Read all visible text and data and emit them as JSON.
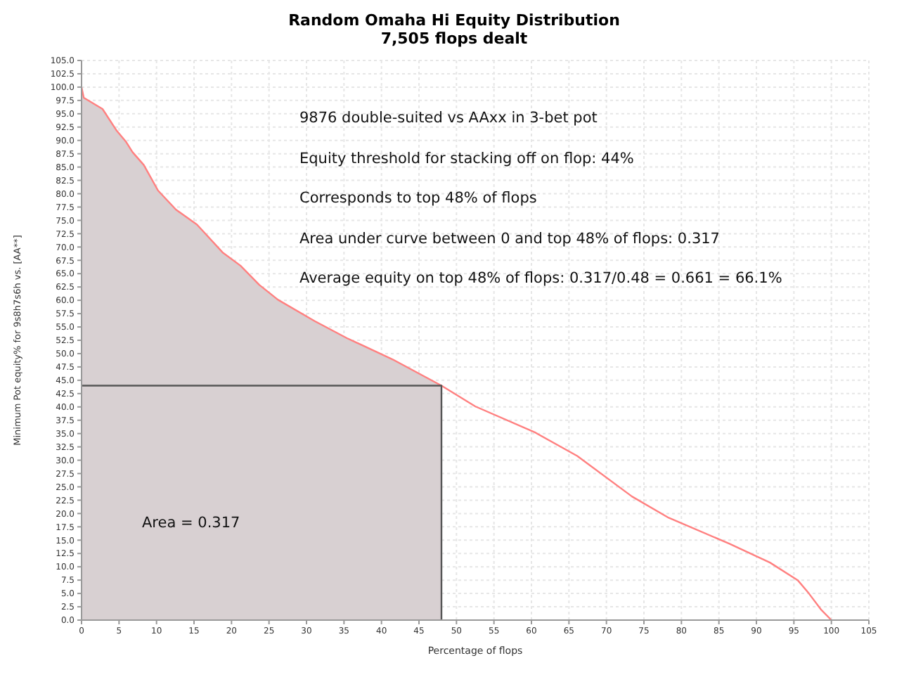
{
  "chart_data": {
    "type": "line",
    "title": "Random Omaha Hi Equity Distribution",
    "subtitle": "7,505 flops dealt",
    "xlabel": "Percentage of flops",
    "ylabel": "Minimum Pot equity% for 9s8h7s6h vs. [AA**]",
    "xlim": [
      0,
      105
    ],
    "xticks": [
      0,
      5,
      10,
      15,
      20,
      25,
      30,
      35,
      40,
      45,
      50,
      55,
      60,
      65,
      70,
      75,
      80,
      85,
      90,
      95,
      100,
      105
    ],
    "ylim": [
      0,
      105
    ],
    "yticks": [
      {
        "value": 0,
        "label": "0.0"
      },
      {
        "value": 2.5,
        "label": "2.5"
      },
      {
        "value": 5,
        "label": "5.0"
      },
      {
        "value": 7.5,
        "label": "7.5"
      },
      {
        "value": 10,
        "label": "10.0"
      },
      {
        "value": 12.5,
        "label": "12.5"
      },
      {
        "value": 15,
        "label": "15.0"
      },
      {
        "value": 17.5,
        "label": "17.5"
      },
      {
        "value": 20,
        "label": "20.0"
      },
      {
        "value": 22.5,
        "label": "22.5"
      },
      {
        "value": 25,
        "label": "25.0"
      },
      {
        "value": 27.5,
        "label": "27.5"
      },
      {
        "value": 30,
        "label": "30.0"
      },
      {
        "value": 32.5,
        "label": "32.5"
      },
      {
        "value": 35,
        "label": "35.0"
      },
      {
        "value": 37.5,
        "label": "37.5"
      },
      {
        "value": 40,
        "label": "40.0"
      },
      {
        "value": 42.5,
        "label": "42.5"
      },
      {
        "value": 45,
        "label": "45.0"
      },
      {
        "value": 47.5,
        "label": "47.5"
      },
      {
        "value": 50,
        "label": "50.0"
      },
      {
        "value": 52.5,
        "label": "52.5"
      },
      {
        "value": 55,
        "label": "55.0"
      },
      {
        "value": 57.5,
        "label": "57.5"
      },
      {
        "value": 60,
        "label": "60.0"
      },
      {
        "value": 62.5,
        "label": "62.5"
      },
      {
        "value": 65,
        "label": "65.0"
      },
      {
        "value": 67.5,
        "label": "67.5"
      },
      {
        "value": 70,
        "label": "70.0"
      },
      {
        "value": 72.5,
        "label": "72.5"
      },
      {
        "value": 75,
        "label": "75.0"
      },
      {
        "value": 77.5,
        "label": "77.5"
      },
      {
        "value": 80,
        "label": "80.0"
      },
      {
        "value": 82.5,
        "label": "82.5"
      },
      {
        "value": 85,
        "label": "85.0"
      },
      {
        "value": 87.5,
        "label": "87.5"
      },
      {
        "value": 90,
        "label": "90.0"
      },
      {
        "value": 92.5,
        "label": "92.5"
      },
      {
        "value": 95,
        "label": "95.0"
      },
      {
        "value": 97.5,
        "label": "97.5"
      },
      {
        "value": 100,
        "label": "100.0"
      },
      {
        "value": 102.5,
        "label": "102.5"
      },
      {
        "value": 105,
        "label": "105.0"
      }
    ],
    "grid": true,
    "marker": "none",
    "line_style": "solid",
    "series": [
      {
        "type": "area",
        "color": "#d8d0d2",
        "x": [
          0,
          0.3,
          2.8,
          4.7,
          5.9,
          6.8,
          8.3,
          10.2,
          12.6,
          15.4,
          18.8,
          21.2,
          23.7,
          26.2,
          31.1,
          35.4,
          41.5,
          48
        ],
        "values": [
          100,
          98,
          95.9,
          91.8,
          89.8,
          87.8,
          85.4,
          80.6,
          77,
          74.2,
          69,
          66.5,
          62.9,
          60.1,
          56.1,
          52.9,
          48.9,
          44
        ]
      },
      {
        "color": "#ff8080",
        "x": [
          0,
          0.3,
          2.8,
          4.7,
          5.9,
          6.8,
          8.3,
          10.2,
          12.6,
          15.4,
          18.8,
          21.2,
          23.7,
          26.2,
          31.1,
          35.4,
          41.5,
          48,
          52.5,
          60.5,
          66.1,
          73.4,
          78.3,
          86.3,
          91.8,
          95.5,
          97,
          98.6,
          100
        ],
        "values": [
          100,
          98,
          95.9,
          91.8,
          89.8,
          87.8,
          85.4,
          80.6,
          77,
          74.2,
          69,
          66.5,
          62.9,
          60.1,
          56.1,
          52.9,
          48.9,
          44,
          40.1,
          35.2,
          30.8,
          23.2,
          19.2,
          14.4,
          10.8,
          7.5,
          5,
          2,
          0
        ]
      },
      {
        "color": "#555555",
        "x": [
          0,
          48,
          48
        ],
        "values": [
          44,
          44,
          0
        ]
      }
    ],
    "annotations": [
      "9876 double-suited vs AAxx in 3-bet pot",
      "Equity threshold for stacking off on flop: 44%",
      "Corresponds to top 48% of flops",
      "Area under curve between 0 and top 48% of flops: 0.317",
      "Average equity on top 48% of flops: 0.317/0.48 = 0.661 = 66.1%",
      "Area = 0.317"
    ]
  }
}
